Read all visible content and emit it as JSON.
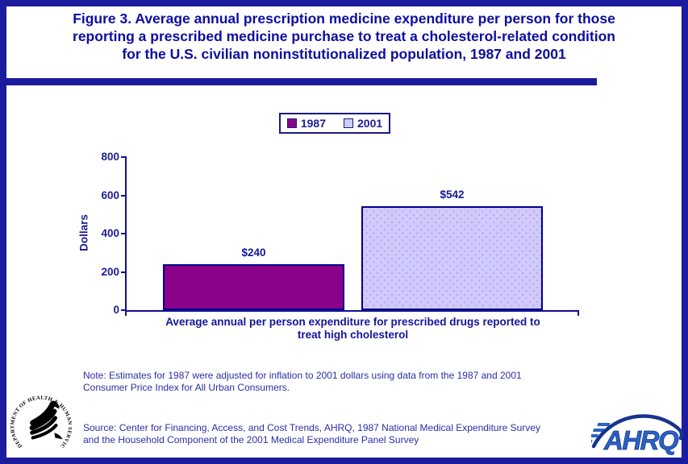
{
  "header": {
    "title_lines": [
      "Figure 3. Average annual prescription medicine expenditure per person for those",
      "reporting a prescribed medicine purchase to treat a cholesterol-related condition",
      "for the U.S. civilian noninstitutionalized population, 1987 and 2001"
    ]
  },
  "legend": {
    "items": [
      {
        "label": "1987",
        "color": "#8a018a"
      },
      {
        "label": "2001",
        "color": "#ccccfe"
      }
    ]
  },
  "chart_data": {
    "type": "bar",
    "categories": [
      "1987",
      "2001"
    ],
    "values": [
      240,
      542
    ],
    "bar_labels": [
      "$240",
      "$542"
    ],
    "series_colors": [
      "#8a018a",
      "#ccccfe"
    ],
    "title": "",
    "ylabel": "Dollars",
    "xlabel_lines": [
      "Average annual per person expenditure for prescribed drugs reported to",
      "treat high cholesterol"
    ],
    "ylim": [
      0,
      800
    ],
    "yticks": [
      0,
      200,
      400,
      600,
      800
    ],
    "grid": "off",
    "legend_position": "top-center"
  },
  "note_lines": [
    "Note: Estimates for 1987 were adjusted for inflation to 2001 dollars using data from the 1987 and 2001",
    "Consumer Price Index for All Urban Consumers."
  ],
  "source_lines": [
    "Source: Center for Financing, Access, and Cost Trends, AHRQ, 1987 National Medical Expenditure Survey",
    "and the Household Component of the 2001 Medical Expenditure Panel Survey"
  ],
  "logos": {
    "hhs_circle_text": "DEPARTMENT OF HEALTH & HUMAN SERVICES • USA",
    "ahrq_text": "AHRQ"
  },
  "colors": {
    "frame_navy": "#1b1b9e",
    "title_blue": "#0d0da1",
    "axis_navy": "#10108c",
    "bar_purple": "#8a018a",
    "bar_lavender": "#ccccfe"
  }
}
